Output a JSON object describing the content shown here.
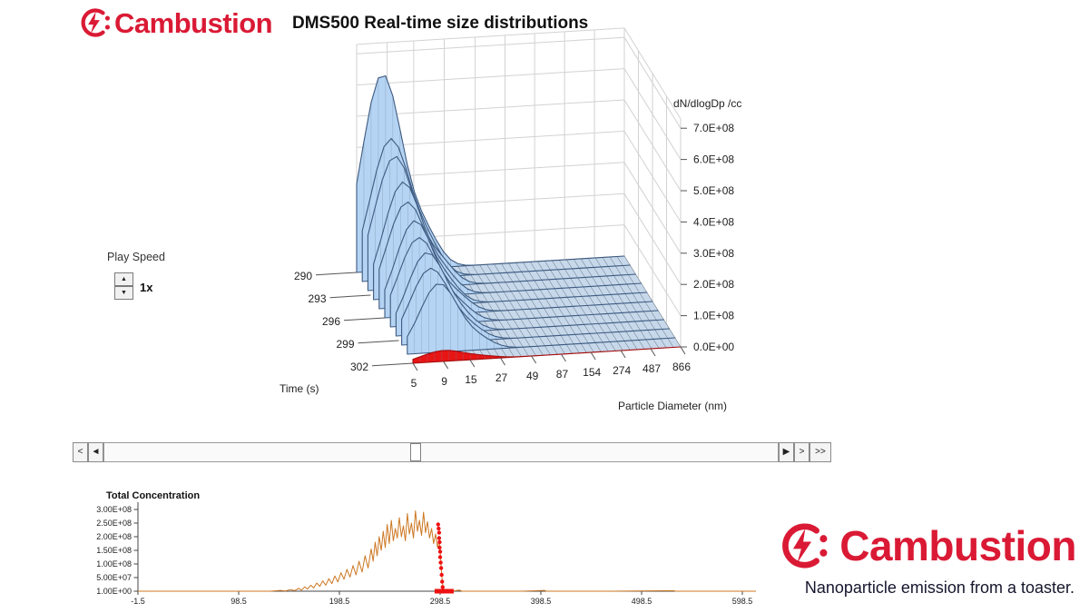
{
  "header": {
    "brand": "Cambustion",
    "title": "DMS500 Real-time size distributions"
  },
  "controls": {
    "play_speed_label": "Play Speed",
    "play_speed_value": "1x",
    "spin_up": "▲",
    "spin_down": "▼"
  },
  "scrollbar": {
    "step_back": "<",
    "page_back": "◄",
    "page_forward": "▶",
    "step_forward": ">",
    "fast_forward": ">>"
  },
  "footer": {
    "brand": "Cambustion",
    "tagline": "Nanoparticle emission from a toaster."
  },
  "colors": {
    "brand_red": "#da1a35",
    "trace_fill": "#b5d3f2",
    "trace_stroke": "#3d5a80",
    "trace_rib": "#69839f",
    "front_trace": "#e81515",
    "front_trace_stroke": "#a50d0d",
    "mesh_fill": "#c7d8ea",
    "mesh_line": "#5a6b7a",
    "wall_grid": "#d2d2d2",
    "axis_text": "#222222",
    "concentration_line": "#cc7722",
    "marker_red": "#ee1111"
  },
  "chart_data": [
    {
      "type": "waterfall-3d",
      "title": "DMS500 Real-time size distributions",
      "xlabel": "Particle Diameter (nm)",
      "ylabel": "Time (s)",
      "zlabel": "dN/dlogDp /cc",
      "x_scale": "log",
      "x_ticks": [
        5,
        9,
        15,
        27,
        49,
        87,
        154,
        274,
        487,
        866
      ],
      "y_ticks": [
        290,
        293,
        296,
        299,
        302
      ],
      "y_range": [
        290,
        302
      ],
      "z_ticks": [
        {
          "label": "0.0E+00",
          "value": 0
        },
        {
          "label": "1.0E+08",
          "value": 100000000.0
        },
        {
          "label": "2.0E+08",
          "value": 200000000.0
        },
        {
          "label": "3.0E+08",
          "value": 300000000.0
        },
        {
          "label": "4.0E+08",
          "value": 400000000.0
        },
        {
          "label": "5.0E+08",
          "value": 500000000.0
        },
        {
          "label": "6.0E+08",
          "value": 600000000.0
        },
        {
          "label": "7.0E+08",
          "value": 700000000.0
        }
      ],
      "z_max": 700000000.0,
      "series": [
        {
          "time": 290.0,
          "peak_nm": 8.2,
          "sigma": 0.17,
          "amplitude": 630000000.0,
          "shoulder_nm": 19,
          "shoulder_amp": 90000000.0
        },
        {
          "time": 291.2,
          "peak_nm": 8.6,
          "sigma": 0.165,
          "amplitude": 450000000.0,
          "shoulder_nm": 18,
          "shoulder_amp": 80000000.0
        },
        {
          "time": 292.4,
          "peak_nm": 8.4,
          "sigma": 0.17,
          "amplitude": 425000000.0,
          "shoulder_nm": 20,
          "shoulder_amp": 70000000.0
        },
        {
          "time": 293.6,
          "peak_nm": 8.8,
          "sigma": 0.16,
          "amplitude": 370000000.0,
          "shoulder_nm": 19,
          "shoulder_amp": 65000000.0
        },
        {
          "time": 294.8,
          "peak_nm": 8.5,
          "sigma": 0.165,
          "amplitude": 335000000.0,
          "shoulder_nm": 18,
          "shoulder_amp": 60000000.0
        },
        {
          "time": 296.0,
          "peak_nm": 8.9,
          "sigma": 0.16,
          "amplitude": 305000000.0,
          "shoulder_nm": 20,
          "shoulder_amp": 50000000.0
        },
        {
          "time": 297.2,
          "peak_nm": 8.6,
          "sigma": 0.165,
          "amplitude": 280000000.0,
          "shoulder_nm": 19,
          "shoulder_amp": 45000000.0
        },
        {
          "time": 298.4,
          "peak_nm": 9.0,
          "sigma": 0.16,
          "amplitude": 260000000.0,
          "shoulder_nm": 18,
          "shoulder_amp": 40000000.0
        },
        {
          "time": 299.6,
          "peak_nm": 8.7,
          "sigma": 0.165,
          "amplitude": 240000000.0,
          "shoulder_nm": 19,
          "shoulder_amp": 35000000.0
        },
        {
          "time": 300.8,
          "peak_nm": 9.2,
          "sigma": 0.16,
          "amplitude": 220000000.0,
          "shoulder_nm": 20,
          "shoulder_amp": 30000000.0
        }
      ],
      "front_series": {
        "time": 302,
        "peak_nm": 9,
        "sigma": 0.18,
        "amplitude": 35000000.0,
        "shoulder_nm": 20,
        "shoulder_amp": 6000000.0
      }
    },
    {
      "type": "line",
      "title": "Total Concentration",
      "xlabel": "",
      "ylabel": "",
      "x_ticks": [
        -1.5,
        98.5,
        198.5,
        298.5,
        398.5,
        498.5,
        598.5
      ],
      "xlim": [
        -1.5,
        612
      ],
      "y_ticks": [
        {
          "label": "3.00E+08",
          "value": 300000000.0
        },
        {
          "label": "2.50E+08",
          "value": 250000000.0
        },
        {
          "label": "2.00E+08",
          "value": 200000000.0
        },
        {
          "label": "1.50E+08",
          "value": 150000000.0
        },
        {
          "label": "1.00E+08",
          "value": 100000000.0
        },
        {
          "label": "5.00E+07",
          "value": 50000000.0
        },
        {
          "label": "1.00E+00",
          "value": 0
        }
      ],
      "series": [
        {
          "name": "Total Concentration",
          "color": "#cc7722",
          "points": [
            [
              -1.5,
              0
            ],
            [
              50,
              0
            ],
            [
              100,
              0
            ],
            [
              130,
              0
            ],
            [
              140,
              3000000.0
            ],
            [
              145,
              1000000.0
            ],
            [
              150,
              6000000.0
            ],
            [
              154,
              2000000.0
            ],
            [
              158,
              10000000.0
            ],
            [
              161,
              4000000.0
            ],
            [
              164,
              16000000.0
            ],
            [
              167,
              8000000.0
            ],
            [
              170,
              22000000.0
            ],
            [
              173,
              12000000.0
            ],
            [
              176,
              30000000.0
            ],
            [
              179,
              18000000.0
            ],
            [
              182,
              38000000.0
            ],
            [
              185,
              22000000.0
            ],
            [
              188,
              46000000.0
            ],
            [
              191,
              28000000.0
            ],
            [
              194,
              56000000.0
            ],
            [
              197,
              34000000.0
            ],
            [
              200,
              68000000.0
            ],
            [
              203,
              44000000.0
            ],
            [
              206,
              80000000.0
            ],
            [
              209,
              52000000.0
            ],
            [
              212,
              94000000.0
            ],
            [
              215,
              60000000.0
            ],
            [
              218,
              110000000.0
            ],
            [
              221,
              70000000.0
            ],
            [
              224,
              130000000.0
            ],
            [
              227,
              85000000.0
            ],
            [
              230,
              155000000.0
            ],
            [
              232,
              110000000.0
            ],
            [
              234,
              180000000.0
            ],
            [
              236,
              130000000.0
            ],
            [
              238,
              200000000.0
            ],
            [
              240,
              150000000.0
            ],
            [
              242,
              220000000.0
            ],
            [
              244,
              160000000.0
            ],
            [
              246,
              245000000.0
            ],
            [
              248,
              175000000.0
            ],
            [
              250,
              260000000.0
            ],
            [
              252,
              185000000.0
            ],
            [
              254,
              230000000.0
            ],
            [
              256,
              195000000.0
            ],
            [
              258,
              270000000.0
            ],
            [
              260,
              200000000.0
            ],
            [
              262,
              240000000.0
            ],
            [
              264,
              185000000.0
            ],
            [
              266,
              285000000.0
            ],
            [
              268,
              210000000.0
            ],
            [
              270,
              250000000.0
            ],
            [
              272,
              195000000.0
            ],
            [
              274,
              295000000.0
            ],
            [
              276,
              220000000.0
            ],
            [
              278,
              260000000.0
            ],
            [
              280,
              205000000.0
            ],
            [
              282,
              290000000.0
            ],
            [
              284,
              215000000.0
            ],
            [
              286,
              255000000.0
            ],
            [
              288,
              195000000.0
            ],
            [
              290,
              230000000.0
            ],
            [
              292,
              175000000.0
            ],
            [
              294,
              210000000.0
            ],
            [
              296,
              160000000.0
            ],
            [
              297.5,
              190000000.0
            ],
            [
              299,
              120000000.0
            ],
            [
              300,
              60000000.0
            ],
            [
              301,
              25000000.0
            ],
            [
              302,
              8000000.0
            ],
            [
              304,
              2000000.0
            ],
            [
              306,
              0
            ],
            [
              310,
              0
            ],
            [
              318,
              4000000.0
            ],
            [
              320,
              0
            ],
            [
              380,
              0
            ],
            [
              402,
              3000000.0
            ],
            [
              404,
              0
            ],
            [
              470,
              0
            ],
            [
              530,
              2000000.0
            ],
            [
              532,
              0
            ],
            [
              612,
              0
            ]
          ]
        }
      ],
      "markers": {
        "color": "#ee1111",
        "points": [
          [
            296.5,
            245000000.0
          ],
          [
            297,
            230000000.0
          ],
          [
            297.5,
            215000000.0
          ],
          [
            297.5,
            195000000.0
          ],
          [
            298,
            180000000.0
          ],
          [
            298,
            160000000.0
          ],
          [
            298.5,
            145000000.0
          ],
          [
            298.5,
            125000000.0
          ],
          [
            299,
            105000000.0
          ],
          [
            299.5,
            85000000.0
          ],
          [
            300,
            60000000.0
          ],
          [
            300.5,
            35000000.0
          ],
          [
            301,
            15000000.0
          ]
        ],
        "baseline_bar": [
          293,
          312
        ]
      }
    }
  ]
}
